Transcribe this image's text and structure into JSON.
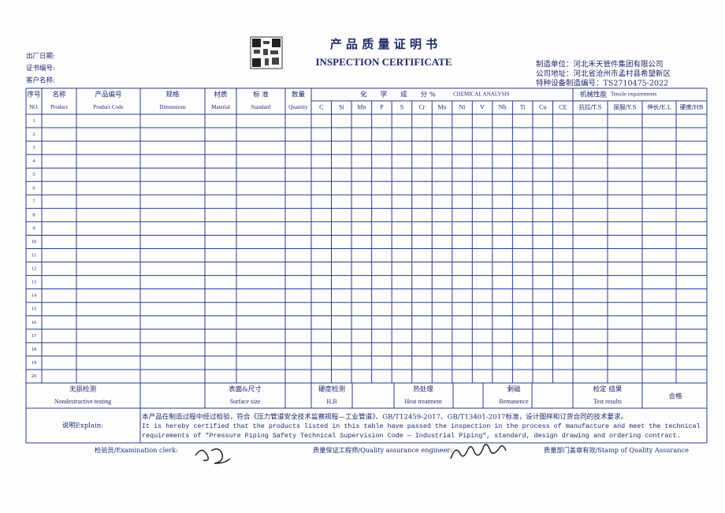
{
  "header": {
    "title_cn": "产 品 质 量 证 明 书",
    "title_en": "INSPECTION CERTIFICATE",
    "left_fields": [
      "出厂日期:",
      "证书编号:",
      "客户名称:"
    ],
    "right_fields": [
      "制造单位：河北禾天管件集团有限公司",
      "公司地址：河北省沧州市孟村县希望新区",
      "特种设备制造编号：TS2710475-2022"
    ]
  },
  "table": {
    "columns": [
      {
        "cn": "序号",
        "en": "NO."
      },
      {
        "cn": "名称",
        "en": "Product"
      },
      {
        "cn": "产品编号",
        "en": "Product Code"
      },
      {
        "cn": "规格",
        "en": "Dimensions"
      },
      {
        "cn": "材质",
        "en": "Material"
      },
      {
        "cn": "标 准",
        "en": "Standard"
      },
      {
        "cn": "数量",
        "en": "Quantity"
      }
    ],
    "chemical_title": "化　　学　　成　　分 %",
    "chemical_title_en": "CHEMICAL ANALYSIS",
    "elements": [
      "C",
      "Si",
      "Mn",
      "P",
      "S",
      "Cr",
      "Mo",
      "Ni",
      "V",
      "Nb",
      "Ti",
      "Cu",
      "CE"
    ],
    "mechanical_title": "机械性能",
    "mechanical_title_en": "Tensile requirements",
    "mechanical": [
      "抗拉/T.S",
      "屈服/Y.S",
      "伸长/E.L",
      "硬度/HB"
    ],
    "row_numbers": [
      1,
      2,
      3,
      4,
      5,
      6,
      7,
      8,
      9,
      10,
      11,
      12,
      13,
      14,
      15,
      16,
      17,
      18,
      19,
      20
    ]
  },
  "tests": [
    {
      "cn": "无损检测",
      "en": "Nondestructive testing"
    },
    {
      "cn": "表面&尺寸",
      "en": "Surface size"
    },
    {
      "cn": "硬度检测",
      "en": "H.B"
    },
    {
      "cn": "热处理",
      "en": "Heat treatment"
    },
    {
      "cn": "剩磁",
      "en": "Remanence"
    },
    {
      "cn": "检定 结果",
      "en": "Test results"
    }
  ],
  "result": "合格",
  "explain": {
    "label": "说明Explain:",
    "lines": [
      "本产品在制造过程中经过检验，符合《压力管道安全技术监察规程—工业管道》、GB/T12459-2017、GB/T13401-2017标准，设计图样和订货合同的技术要求。",
      "It is hereby certified that the products listed in this table have passed the inspection in the process of manufacture and meet the technical",
      "requirements of \"Pressure Piping Safety Technical Supervision Code — Industrial Piping\", standard, design drawing and ordering contract."
    ]
  },
  "footer": [
    "检验员/Examination clerk:",
    "质量保证工程师/Quality assurance engineer:",
    "质量部门盖章有效/Stamp of Quality Assurance"
  ]
}
